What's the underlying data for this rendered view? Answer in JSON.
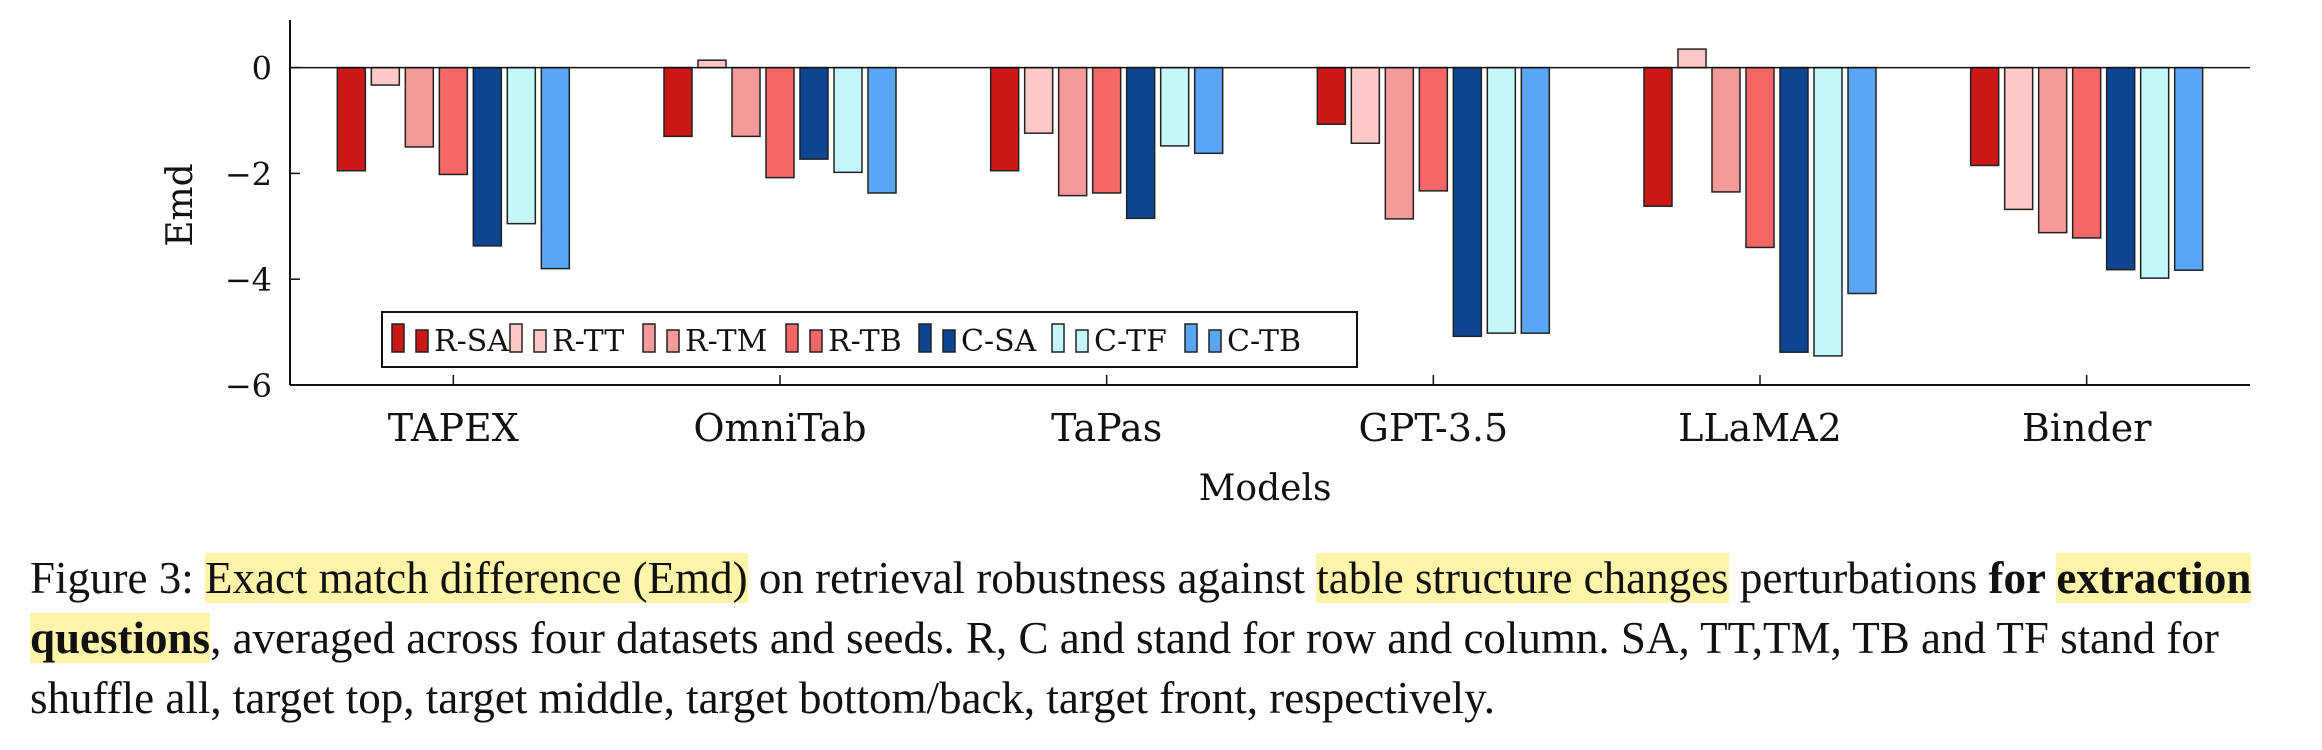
{
  "chart_data": {
    "type": "bar",
    "categories": [
      "TAPEX",
      "OmniTab",
      "TaPas",
      "GPT-3.5",
      "LLaMA2",
      "Binder"
    ],
    "series": [
      {
        "name": "R-SA",
        "color": "#cc1717",
        "values": [
          -1.95,
          -1.3,
          -1.95,
          -1.07,
          -2.62,
          -1.85
        ]
      },
      {
        "name": "R-TT",
        "color": "#fcc8c8",
        "values": [
          -0.33,
          0.14,
          -1.24,
          -1.43,
          0.35,
          -2.68
        ]
      },
      {
        "name": "R-TM",
        "color": "#f59a9a",
        "values": [
          -1.5,
          -1.3,
          -2.42,
          -2.86,
          -2.35,
          -3.12
        ]
      },
      {
        "name": "R-TB",
        "color": "#f56666",
        "values": [
          -2.02,
          -2.08,
          -2.37,
          -2.33,
          -3.4,
          -3.22
        ]
      },
      {
        "name": "C-SA",
        "color": "#0d4592",
        "values": [
          -3.37,
          -1.73,
          -2.85,
          -5.08,
          -5.38,
          -3.82
        ]
      },
      {
        "name": "C-TF",
        "color": "#c5f7f9",
        "values": [
          -2.95,
          -1.98,
          -1.48,
          -5.02,
          -5.45,
          -3.98
        ]
      },
      {
        "name": "C-TB",
        "color": "#5aa5f5",
        "values": [
          -3.8,
          -2.37,
          -1.62,
          -5.02,
          -4.27,
          -3.83
        ]
      }
    ],
    "xlabel": "Models",
    "ylabel": "Emd",
    "ylim": [
      -6,
      0.9
    ],
    "yticks": [
      "0",
      "−2",
      "−4",
      "−6"
    ],
    "ytick_values": [
      0,
      -2,
      -4,
      -6
    ],
    "grid": false,
    "legend_position": "bottom-left"
  },
  "caption": {
    "prefix": "Figure 3: ",
    "hl1": "Exact match difference (Emd)",
    "t1": " on retrieval robustness against ",
    "hl2": "table structure changes",
    "t2": " perturbations ",
    "bold1": "for ",
    "bold2": "extraction questions",
    "t3": ", averaged across four datasets and seeds. R, C and stand for row and column. SA, TT,TM, TB and TF stand for shuffle all, target top, target middle, target bottom/back, target front, respectively."
  }
}
